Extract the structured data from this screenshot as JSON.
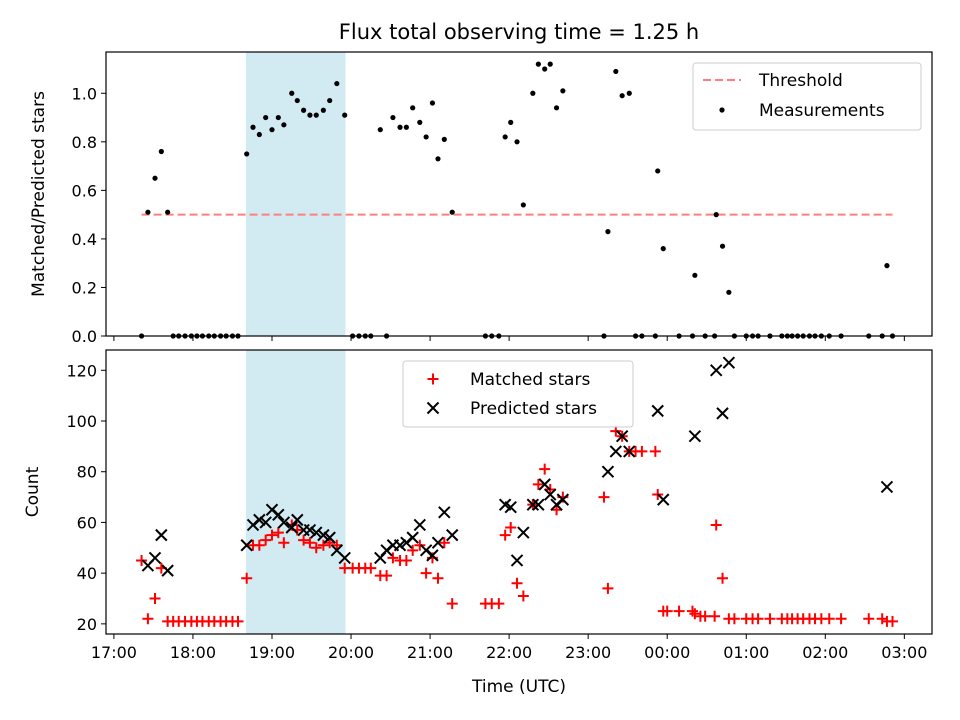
{
  "figure": {
    "title": "Flux total observing time = 1.25 h",
    "xlabel": "Time (UTC)"
  },
  "colors": {
    "threshold": "#ff7f7f",
    "measurement": "#000000",
    "matched": "#ff0000",
    "predicted": "#000000",
    "shade": "#add8e6"
  },
  "chart_data": [
    {
      "type": "scatter",
      "ylabel": "Matched/Predicted stars",
      "xlim": [
        16.9,
        27.35
      ],
      "ylim": [
        0,
        1.17
      ],
      "yticks": [
        "0.0",
        "0.2",
        "0.4",
        "0.6",
        "0.8",
        "1.0"
      ],
      "shaded_region": [
        18.67,
        19.93
      ],
      "legend": {
        "placement": "top-right",
        "entries": [
          "Threshold",
          "Measurements"
        ]
      },
      "threshold": {
        "name": "Threshold",
        "x": [
          17.35,
          26.85
        ],
        "y": 0.5,
        "style": "dashed"
      },
      "series": [
        {
          "name": "Measurements",
          "points": [
            [
              17.35,
              0
            ],
            [
              17.43,
              0.51
            ],
            [
              17.52,
              0.65
            ],
            [
              17.6,
              0.76
            ],
            [
              17.68,
              0.51
            ],
            [
              17.75,
              0
            ],
            [
              17.82,
              0
            ],
            [
              17.9,
              0
            ],
            [
              17.98,
              0
            ],
            [
              18.05,
              0
            ],
            [
              18.12,
              0
            ],
            [
              18.2,
              0
            ],
            [
              18.27,
              0
            ],
            [
              18.35,
              0
            ],
            [
              18.42,
              0
            ],
            [
              18.5,
              0
            ],
            [
              18.57,
              0
            ],
            [
              18.68,
              0.75
            ],
            [
              18.76,
              0.86
            ],
            [
              18.84,
              0.83
            ],
            [
              18.92,
              0.9
            ],
            [
              19.0,
              0.85
            ],
            [
              19.08,
              0.9
            ],
            [
              19.15,
              0.87
            ],
            [
              19.25,
              1.0
            ],
            [
              19.32,
              0.97
            ],
            [
              19.4,
              0.93
            ],
            [
              19.48,
              0.91
            ],
            [
              19.56,
              0.91
            ],
            [
              19.65,
              0.93
            ],
            [
              19.73,
              0.97
            ],
            [
              19.82,
              1.04
            ],
            [
              19.92,
              0.91
            ],
            [
              20.02,
              0
            ],
            [
              20.1,
              0
            ],
            [
              20.18,
              0
            ],
            [
              20.25,
              0
            ],
            [
              20.37,
              0.85
            ],
            [
              20.45,
              0
            ],
            [
              20.53,
              0.9
            ],
            [
              20.62,
              0.86
            ],
            [
              20.7,
              0.86
            ],
            [
              20.78,
              0.94
            ],
            [
              20.87,
              0.88
            ],
            [
              20.95,
              0.82
            ],
            [
              21.03,
              0.96
            ],
            [
              21.1,
              0.73
            ],
            [
              21.18,
              0.81
            ],
            [
              21.28,
              0.51
            ],
            [
              21.7,
              0
            ],
            [
              21.78,
              0
            ],
            [
              21.87,
              0
            ],
            [
              21.95,
              0.82
            ],
            [
              22.02,
              0.88
            ],
            [
              22.1,
              0.8
            ],
            [
              22.18,
              0.54
            ],
            [
              22.3,
              1.0
            ],
            [
              22.37,
              1.12
            ],
            [
              22.45,
              1.1
            ],
            [
              22.52,
              1.12
            ],
            [
              22.6,
              0.94
            ],
            [
              22.68,
              1.01
            ],
            [
              23.2,
              0
            ],
            [
              23.25,
              0.43
            ],
            [
              23.35,
              1.09
            ],
            [
              23.43,
              0.99
            ],
            [
              23.52,
              1.0
            ],
            [
              23.6,
              0
            ],
            [
              23.68,
              0
            ],
            [
              23.85,
              0
            ],
            [
              23.88,
              0.68
            ],
            [
              23.95,
              0.36
            ],
            [
              24.15,
              0
            ],
            [
              24.32,
              0
            ],
            [
              24.35,
              0.25
            ],
            [
              24.48,
              0
            ],
            [
              24.6,
              0
            ],
            [
              24.62,
              0.5
            ],
            [
              24.7,
              0.37
            ],
            [
              24.78,
              0.18
            ],
            [
              24.85,
              0
            ],
            [
              25.0,
              0
            ],
            [
              25.08,
              0
            ],
            [
              25.15,
              0
            ],
            [
              25.3,
              0
            ],
            [
              25.45,
              0
            ],
            [
              25.52,
              0
            ],
            [
              25.58,
              0
            ],
            [
              25.65,
              0
            ],
            [
              25.72,
              0
            ],
            [
              25.8,
              0
            ],
            [
              25.87,
              0
            ],
            [
              25.95,
              0
            ],
            [
              26.05,
              0
            ],
            [
              26.2,
              0
            ],
            [
              26.55,
              0
            ],
            [
              26.72,
              0
            ],
            [
              26.78,
              0.29
            ],
            [
              26.85,
              0
            ]
          ]
        }
      ]
    },
    {
      "type": "scatter",
      "ylabel": "Count",
      "xlim": [
        16.9,
        27.35
      ],
      "ylim": [
        16,
        128
      ],
      "yticks": [
        "20",
        "40",
        "60",
        "80",
        "100",
        "120"
      ],
      "xticks": [
        {
          "value": 17,
          "label": "17:00"
        },
        {
          "value": 18,
          "label": "18:00"
        },
        {
          "value": 19,
          "label": "19:00"
        },
        {
          "value": 20,
          "label": "20:00"
        },
        {
          "value": 21,
          "label": "21:00"
        },
        {
          "value": 22,
          "label": "22:00"
        },
        {
          "value": 23,
          "label": "23:00"
        },
        {
          "value": 24,
          "label": "00:00"
        },
        {
          "value": 25,
          "label": "01:00"
        },
        {
          "value": 26,
          "label": "02:00"
        },
        {
          "value": 27,
          "label": "03:00"
        }
      ],
      "shaded_region": [
        18.67,
        19.93
      ],
      "legend": {
        "placement": "top-center",
        "entries": [
          "Matched stars",
          "Predicted stars"
        ]
      },
      "series": [
        {
          "name": "Matched stars",
          "marker": "plus",
          "points": [
            [
              17.35,
              45
            ],
            [
              17.43,
              22
            ],
            [
              17.52,
              30
            ],
            [
              17.6,
              42
            ],
            [
              17.68,
              21
            ],
            [
              17.75,
              21
            ],
            [
              17.82,
              21
            ],
            [
              17.9,
              21
            ],
            [
              17.98,
              21
            ],
            [
              18.05,
              21
            ],
            [
              18.12,
              21
            ],
            [
              18.2,
              21
            ],
            [
              18.27,
              21
            ],
            [
              18.35,
              21
            ],
            [
              18.42,
              21
            ],
            [
              18.5,
              21
            ],
            [
              18.57,
              21
            ],
            [
              18.68,
              38
            ],
            [
              18.76,
              51
            ],
            [
              18.84,
              51
            ],
            [
              18.92,
              53
            ],
            [
              19.0,
              55
            ],
            [
              19.08,
              56
            ],
            [
              19.15,
              52
            ],
            [
              19.25,
              59
            ],
            [
              19.32,
              57
            ],
            [
              19.4,
              53
            ],
            [
              19.48,
              52
            ],
            [
              19.56,
              50
            ],
            [
              19.65,
              51
            ],
            [
              19.73,
              52
            ],
            [
              19.82,
              51
            ],
            [
              19.92,
              42
            ],
            [
              20.02,
              42
            ],
            [
              20.1,
              42
            ],
            [
              20.18,
              42
            ],
            [
              20.25,
              42
            ],
            [
              20.37,
              39
            ],
            [
              20.45,
              39
            ],
            [
              20.53,
              46
            ],
            [
              20.62,
              45
            ],
            [
              20.7,
              45
            ],
            [
              20.78,
              49
            ],
            [
              20.87,
              51
            ],
            [
              20.95,
              40
            ],
            [
              21.03,
              46
            ],
            [
              21.1,
              38
            ],
            [
              21.18,
              52
            ],
            [
              21.28,
              28
            ],
            [
              21.7,
              28
            ],
            [
              21.78,
              28
            ],
            [
              21.87,
              28
            ],
            [
              21.95,
              55
            ],
            [
              22.02,
              58
            ],
            [
              22.1,
              36
            ],
            [
              22.18,
              31
            ],
            [
              22.3,
              67
            ],
            [
              22.37,
              75
            ],
            [
              22.45,
              81
            ],
            [
              22.52,
              73
            ],
            [
              22.6,
              65
            ],
            [
              22.68,
              70
            ],
            [
              23.2,
              70
            ],
            [
              23.25,
              34
            ],
            [
              23.35,
              96
            ],
            [
              23.43,
              94
            ],
            [
              23.52,
              88
            ],
            [
              23.6,
              88
            ],
            [
              23.68,
              88
            ],
            [
              23.85,
              88
            ],
            [
              23.88,
              71
            ],
            [
              23.95,
              25
            ],
            [
              24.0,
              25
            ],
            [
              24.15,
              25
            ],
            [
              24.32,
              25
            ],
            [
              24.35,
              24
            ],
            [
              24.42,
              23
            ],
            [
              24.48,
              23
            ],
            [
              24.6,
              23
            ],
            [
              24.62,
              59
            ],
            [
              24.7,
              38
            ],
            [
              24.78,
              22
            ],
            [
              24.85,
              22
            ],
            [
              25.0,
              22
            ],
            [
              25.08,
              22
            ],
            [
              25.15,
              22
            ],
            [
              25.3,
              22
            ],
            [
              25.45,
              22
            ],
            [
              25.52,
              22
            ],
            [
              25.58,
              22
            ],
            [
              25.65,
              22
            ],
            [
              25.72,
              22
            ],
            [
              25.8,
              22
            ],
            [
              25.87,
              22
            ],
            [
              25.95,
              22
            ],
            [
              26.05,
              22
            ],
            [
              26.2,
              22
            ],
            [
              26.55,
              22
            ],
            [
              26.72,
              22
            ],
            [
              26.78,
              21
            ],
            [
              26.85,
              21
            ]
          ]
        },
        {
          "name": "Predicted stars",
          "marker": "x",
          "points": [
            [
              17.43,
              43
            ],
            [
              17.52,
              46
            ],
            [
              17.6,
              55
            ],
            [
              17.68,
              41
            ],
            [
              18.68,
              51
            ],
            [
              18.76,
              59
            ],
            [
              18.84,
              61
            ],
            [
              18.92,
              60
            ],
            [
              19.0,
              65
            ],
            [
              19.08,
              63
            ],
            [
              19.15,
              60
            ],
            [
              19.25,
              58
            ],
            [
              19.32,
              61
            ],
            [
              19.4,
              57
            ],
            [
              19.48,
              57
            ],
            [
              19.56,
              56
            ],
            [
              19.65,
              55
            ],
            [
              19.73,
              54
            ],
            [
              19.82,
              49
            ],
            [
              19.92,
              46
            ],
            [
              20.37,
              46
            ],
            [
              20.45,
              49
            ],
            [
              20.53,
              51
            ],
            [
              20.62,
              51
            ],
            [
              20.7,
              52
            ],
            [
              20.78,
              54
            ],
            [
              20.87,
              59
            ],
            [
              20.95,
              49
            ],
            [
              21.03,
              47
            ],
            [
              21.1,
              52
            ],
            [
              21.18,
              64
            ],
            [
              21.28,
              55
            ],
            [
              21.95,
              67
            ],
            [
              22.02,
              66
            ],
            [
              22.1,
              45
            ],
            [
              22.18,
              56
            ],
            [
              22.3,
              67
            ],
            [
              22.37,
              67
            ],
            [
              22.45,
              75
            ],
            [
              22.52,
              71
            ],
            [
              22.6,
              67
            ],
            [
              22.68,
              69
            ],
            [
              23.25,
              80
            ],
            [
              23.35,
              88
            ],
            [
              23.43,
              94
            ],
            [
              23.52,
              88
            ],
            [
              23.88,
              104
            ],
            [
              23.95,
              69
            ],
            [
              24.35,
              94
            ],
            [
              24.62,
              120
            ],
            [
              24.7,
              103
            ],
            [
              24.78,
              123
            ],
            [
              26.78,
              74
            ]
          ]
        }
      ]
    }
  ]
}
